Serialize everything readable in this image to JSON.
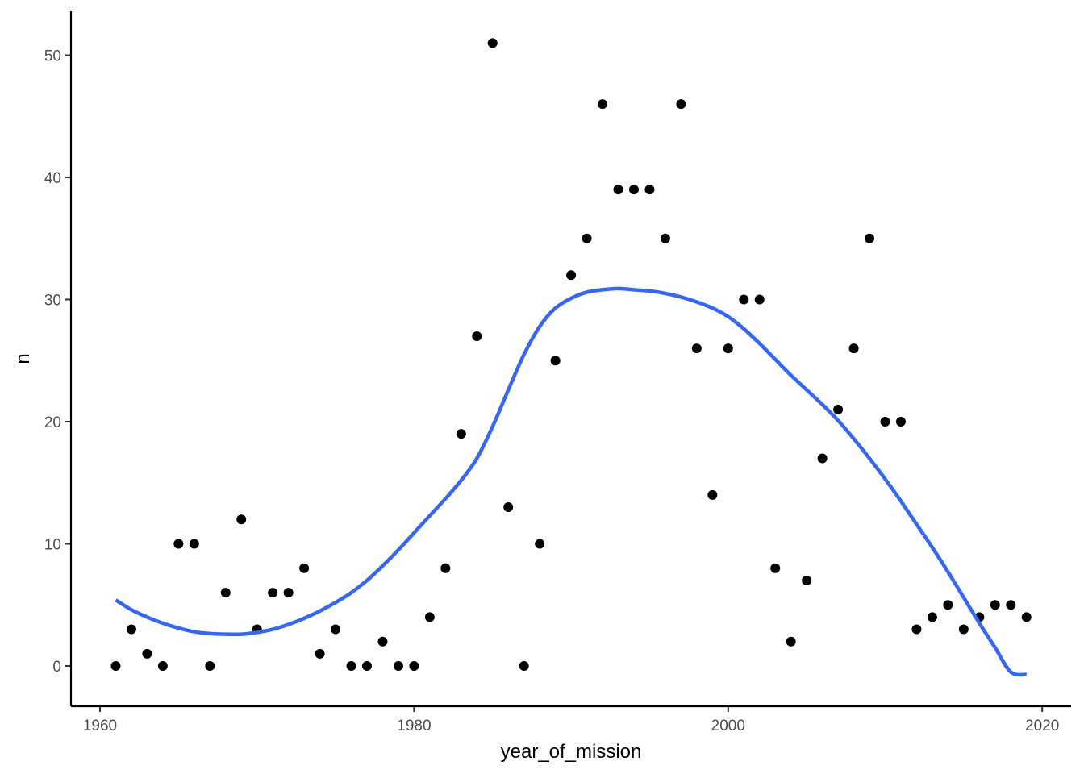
{
  "chart_data": {
    "type": "scatter",
    "title": "",
    "xlabel": "year_of_mission",
    "ylabel": "n",
    "xlim": [
      1960,
      2020
    ],
    "ylim": [
      0,
      50
    ],
    "x_ticks": [
      1960,
      1980,
      2000,
      2020
    ],
    "y_ticks": [
      0,
      10,
      20,
      30,
      40,
      50
    ],
    "x_tick_labels": [
      "1960",
      "1980",
      "2000",
      "2020"
    ],
    "y_tick_labels": [
      "0",
      "10",
      "20",
      "30",
      "40",
      "50"
    ],
    "grid": false,
    "legend": "none",
    "colors": {
      "points": "#000000",
      "smooth": "#3366FF",
      "axis": "#000000",
      "tick_text": "#4d4d4d"
    },
    "series": [
      {
        "kind": "points",
        "x": [
          1961,
          1962,
          1963,
          1964,
          1965,
          1966,
          1967,
          1968,
          1969,
          1970,
          1971,
          1972,
          1973,
          1974,
          1975,
          1976,
          1977,
          1978,
          1979,
          1980,
          1981,
          1982,
          1983,
          1984,
          1985,
          1986,
          1987,
          1988,
          1989,
          1990,
          1991,
          1992,
          1993,
          1994,
          1995,
          1996,
          1997,
          1998,
          1999,
          2000,
          2001,
          2002,
          2003,
          2004,
          2005,
          2006,
          2007,
          2008,
          2009,
          2010,
          2011,
          2012,
          2013,
          2014,
          2015,
          2016,
          2017,
          2018,
          2019
        ],
        "y": [
          0,
          3,
          1,
          0,
          10,
          10,
          0,
          6,
          12,
          3,
          6,
          6,
          8,
          1,
          3,
          0,
          0,
          2,
          0,
          0,
          4,
          8,
          19,
          27,
          51,
          13,
          0,
          10,
          25,
          32,
          35,
          46,
          39,
          39,
          39,
          35,
          46,
          26,
          14,
          26,
          30,
          30,
          8,
          2,
          7,
          17,
          21,
          26,
          35,
          20,
          20,
          3,
          4,
          5,
          3,
          4,
          5,
          5,
          4
        ]
      },
      {
        "kind": "smooth",
        "x": [
          1961,
          1962,
          1963,
          1964,
          1965,
          1966,
          1967,
          1968,
          1969,
          1970,
          1971,
          1972,
          1973,
          1974,
          1975,
          1976,
          1977,
          1978,
          1979,
          1980,
          1981,
          1982,
          1983,
          1984,
          1985,
          1986,
          1987,
          1988,
          1989,
          1990,
          1991,
          1992,
          1993,
          1994,
          1995,
          1996,
          1997,
          1998,
          1999,
          2000,
          2001,
          2002,
          2003,
          2004,
          2005,
          2006,
          2007,
          2008,
          2009,
          2010,
          2011,
          2012,
          2013,
          2014,
          2015,
          2016,
          2017,
          2018,
          2019
        ],
        "y": [
          5.4,
          4.6,
          4.0,
          3.5,
          3.1,
          2.8,
          2.65,
          2.6,
          2.6,
          2.75,
          3.0,
          3.4,
          3.9,
          4.5,
          5.2,
          6.0,
          7.0,
          8.2,
          9.5,
          10.9,
          12.3,
          13.7,
          15.2,
          17.0,
          19.6,
          22.6,
          25.5,
          27.8,
          29.3,
          30.1,
          30.6,
          30.8,
          30.9,
          30.8,
          30.7,
          30.5,
          30.2,
          29.8,
          29.3,
          28.6,
          27.6,
          26.4,
          25.1,
          23.8,
          22.6,
          21.4,
          20.1,
          18.6,
          17.0,
          15.3,
          13.5,
          11.6,
          9.7,
          7.7,
          5.6,
          3.5,
          1.5,
          -0.5,
          -0.7
        ]
      }
    ]
  }
}
